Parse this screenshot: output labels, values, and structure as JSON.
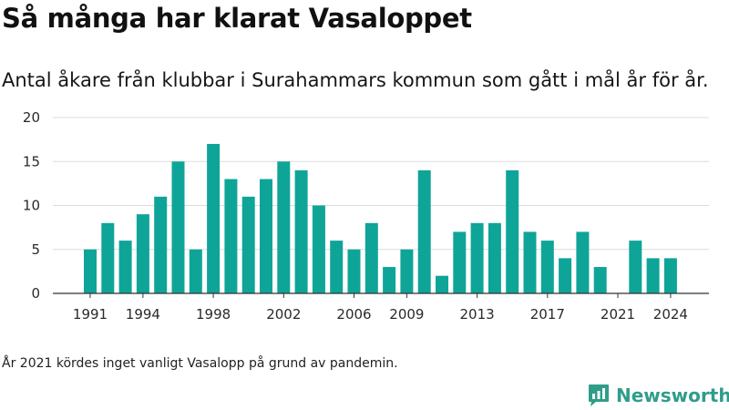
{
  "header": {
    "title": "Så många har klarat Vasaloppet",
    "subtitle": "Antal åkare från klubbar i Surahammars kommun som gått i mål år för år."
  },
  "footnote": "År 2021 kördes inget vanligt Vasalopp på grund av pandemin.",
  "brand": {
    "name": "Newsworthy",
    "icon": "newsworthy-logo-icon",
    "color": "#2f9d8a"
  },
  "chart_data": {
    "type": "bar",
    "title": "",
    "xlabel": "",
    "ylabel": "",
    "x": [
      1991,
      1992,
      1993,
      1994,
      1995,
      1996,
      1997,
      1998,
      1999,
      2000,
      2001,
      2002,
      2003,
      2004,
      2005,
      2006,
      2007,
      2008,
      2009,
      2010,
      2011,
      2012,
      2013,
      2014,
      2015,
      2016,
      2017,
      2018,
      2019,
      2020,
      2021,
      2022,
      2023,
      2024
    ],
    "values": [
      5,
      8,
      6,
      9,
      11,
      15,
      5,
      17,
      13,
      11,
      13,
      15,
      14,
      10,
      6,
      5,
      8,
      3,
      5,
      14,
      2,
      7,
      8,
      8,
      14,
      7,
      6,
      4,
      7,
      3,
      0,
      6,
      4,
      4
    ],
    "x_ticks": [
      "1991",
      "1994",
      "1998",
      "2002",
      "2006",
      "2009",
      "2013",
      "2017",
      "2021",
      "2024"
    ],
    "y_ticks": [
      "0",
      "5",
      "10",
      "15",
      "20"
    ],
    "ylim": [
      0,
      20
    ],
    "bar_color": "#0ea598",
    "grid": true,
    "legend": "none"
  }
}
